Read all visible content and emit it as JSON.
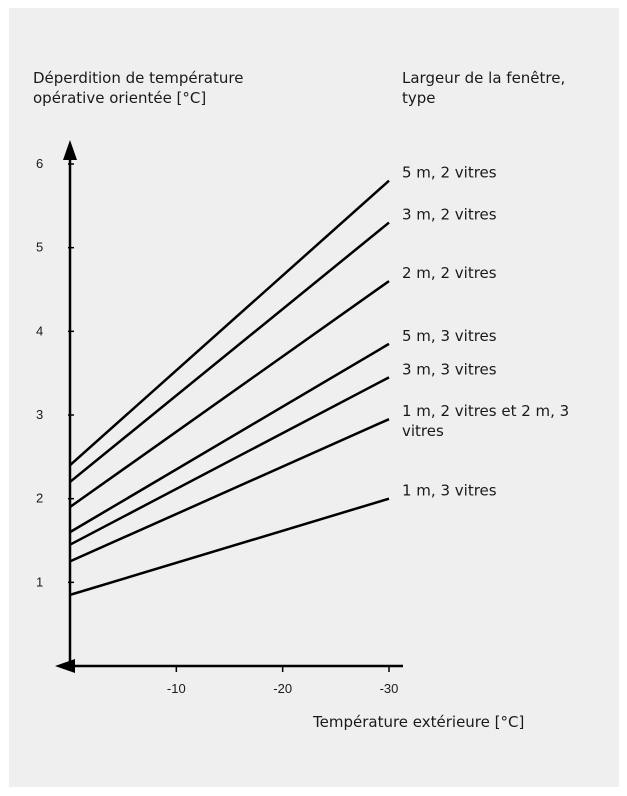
{
  "chart_data": {
    "type": "line",
    "ylabel": [
      "Déperdition de température",
      "opérative orientée [°C]"
    ],
    "xlabel": "Température extérieure [°C]",
    "legend_title": [
      "Largeur de la fenêtre,",
      "type"
    ],
    "x_ticks": [
      -10,
      -20,
      -30
    ],
    "y_ticks": [
      1,
      2,
      3,
      4,
      5,
      6
    ],
    "xlim": [
      0,
      -30
    ],
    "ylim": [
      0,
      6
    ],
    "grid": false,
    "series": [
      {
        "name": "5 m, 2 vitres",
        "label_lines": [
          "5 m, 2 vitres"
        ],
        "x": [
          0,
          -30
        ],
        "y": [
          2.4,
          5.8
        ]
      },
      {
        "name": "3 m, 2 vitres",
        "label_lines": [
          "3 m, 2 vitres"
        ],
        "x": [
          0,
          -30
        ],
        "y": [
          2.2,
          5.3
        ]
      },
      {
        "name": "2 m, 2 vitres",
        "label_lines": [
          "2 m, 2 vitres"
        ],
        "x": [
          0,
          -30
        ],
        "y": [
          1.9,
          4.6
        ]
      },
      {
        "name": "5 m, 3 vitres",
        "label_lines": [
          "5 m, 3 vitres"
        ],
        "x": [
          0,
          -30
        ],
        "y": [
          1.6,
          3.85
        ]
      },
      {
        "name": "3 m, 3 vitres",
        "label_lines": [
          "3 m, 3 vitres"
        ],
        "x": [
          0,
          -30
        ],
        "y": [
          1.45,
          3.45
        ]
      },
      {
        "name": "1 m, 2 vitres et 2 m, 3 vitres",
        "label_lines": [
          "1 m, 2 vitres et 2 m, 3",
          "vitres"
        ],
        "x": [
          0,
          -30
        ],
        "y": [
          1.25,
          2.95
        ]
      },
      {
        "name": "1 m, 3 vitres",
        "label_lines": [
          "1 m, 3 vitres"
        ],
        "x": [
          0,
          -30
        ],
        "y": [
          0.85,
          2.0
        ]
      }
    ]
  }
}
